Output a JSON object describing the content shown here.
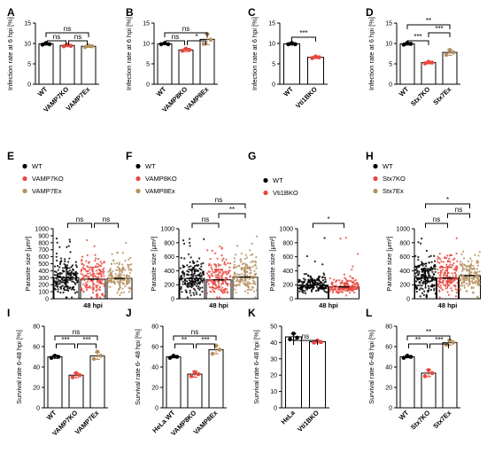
{
  "colors": {
    "wt": "#000000",
    "ko": "#e8473e",
    "ex": "#b5905e"
  },
  "chart_data": [
    {
      "panel": "A",
      "type": "bar",
      "ylabel": "Infection rate at 6 hpi [%]",
      "ylim": [
        0,
        15
      ],
      "yticks": [
        "0",
        "5",
        "10",
        "15"
      ],
      "categories": [
        "WT",
        "VAMP7KO",
        "VAMP7Ex"
      ],
      "values": [
        9.9,
        9.5,
        9.3
      ],
      "err": [
        0.3,
        0.3,
        0.3
      ],
      "points": [
        [
          9.7,
          10.1,
          9.8
        ],
        [
          9.3,
          9.7,
          9.4
        ],
        [
          9.1,
          9.5,
          9.3
        ]
      ],
      "sig": [
        {
          "a": 0,
          "b": 1,
          "label": "ns",
          "lvl": 0
        },
        {
          "a": 1,
          "b": 2,
          "label": "ns",
          "lvl": 0
        },
        {
          "a": 0,
          "b": 2,
          "label": "ns",
          "lvl": 1
        }
      ]
    },
    {
      "panel": "B",
      "type": "bar",
      "ylabel": "Infection rate at 6 hpi [%]",
      "ylim": [
        0,
        15
      ],
      "yticks": [
        "0",
        "5",
        "10",
        "15"
      ],
      "categories": [
        "WT",
        "VAMP8KO",
        "VAMP8Ex"
      ],
      "values": [
        9.9,
        8.4,
        11.0
      ],
      "err": [
        0.2,
        0.4,
        1.3
      ],
      "points": [
        [
          9.8,
          10.1,
          9.8
        ],
        [
          8.2,
          8.7,
          8.4
        ],
        [
          9.9,
          12.3,
          10.9
        ]
      ],
      "sig": [
        {
          "a": 0,
          "b": 1,
          "label": "ns",
          "lvl": 0
        },
        {
          "a": 1,
          "b": 2,
          "label": "*",
          "lvl": 0
        },
        {
          "a": 0,
          "b": 2,
          "label": "ns",
          "lvl": 1
        }
      ]
    },
    {
      "panel": "C",
      "type": "bar",
      "ylabel": "Infection rate at 6 hpi [%]",
      "ylim": [
        0,
        15
      ],
      "yticks": [
        "0",
        "5",
        "10",
        "15"
      ],
      "categories": [
        "WT",
        "Vti1BKO"
      ],
      "values": [
        9.9,
        6.6
      ],
      "err": [
        0.3,
        0.3
      ],
      "points": [
        [
          9.8,
          10.1,
          9.8
        ],
        [
          6.4,
          6.8,
          6.6
        ]
      ],
      "sig": [
        {
          "a": 0,
          "b": 1,
          "label": "***",
          "lvl": 0
        }
      ]
    },
    {
      "panel": "D",
      "type": "bar",
      "ylabel": "Infection rate at 6 hpi [%]",
      "ylim": [
        0,
        15
      ],
      "yticks": [
        "0",
        "5",
        "10",
        "15"
      ],
      "categories": [
        "WT",
        "Stx7KO",
        "Stx7Ex"
      ],
      "values": [
        9.9,
        5.3,
        7.8
      ],
      "err": [
        0.3,
        0.3,
        0.7
      ],
      "points": [
        [
          9.7,
          10.1,
          9.9
        ],
        [
          5.1,
          5.5,
          5.3
        ],
        [
          7.2,
          8.4,
          7.8
        ]
      ],
      "sig": [
        {
          "a": 0,
          "b": 1,
          "label": "***",
          "lvl": 0
        },
        {
          "a": 1,
          "b": 2,
          "label": "***",
          "lvl": 1
        },
        {
          "a": 0,
          "b": 2,
          "label": "**",
          "lvl": 2
        }
      ]
    },
    {
      "panel": "E",
      "type": "scatter-bar",
      "ylabel": "Parasite size [μm²]",
      "ylim": [
        0,
        1000
      ],
      "yticks": [
        "0",
        "100",
        "200",
        "300",
        "400",
        "500",
        "600",
        "700",
        "800",
        "900",
        "1000"
      ],
      "xlabel": "48 hpi",
      "legend": [
        "WT",
        "VAMP7KO",
        "VAMP7Ex"
      ],
      "series": [
        "wt",
        "ko",
        "ex"
      ],
      "values": [
        300,
        280,
        290
      ],
      "err": [
        140,
        170,
        120
      ],
      "sig": [
        {
          "a": 0,
          "b": 1,
          "label": "ns",
          "lvl": 0
        },
        {
          "a": 1,
          "b": 2,
          "label": "ns",
          "lvl": 0
        }
      ]
    },
    {
      "panel": "F",
      "type": "scatter-bar",
      "ylabel": "Parasite size [μm²]",
      "ylim": [
        0,
        1000
      ],
      "yticks": [
        "0",
        "200",
        "400",
        "600",
        "800",
        "1000"
      ],
      "xlabel": "48 hpi",
      "legend": [
        "WT",
        "VAMP8KO",
        "VAMP8Ex"
      ],
      "series": [
        "wt",
        "ko",
        "ex"
      ],
      "values": [
        290,
        270,
        310
      ],
      "err": [
        130,
        150,
        130
      ],
      "sig": [
        {
          "a": 0,
          "b": 1,
          "label": "ns",
          "lvl": 0
        },
        {
          "a": 1,
          "b": 2,
          "label": "**",
          "lvl": 1
        },
        {
          "a": 0,
          "b": 2,
          "label": "ns",
          "lvl": 2
        }
      ]
    },
    {
      "panel": "G",
      "type": "scatter-bar",
      "ylabel": "Parasite size [μm²]",
      "ylim": [
        0,
        1000
      ],
      "yticks": [
        "0",
        "200",
        "400",
        "600",
        "800",
        "1000"
      ],
      "xlabel": "48 hpi",
      "legend": [
        "WT",
        "Vti1BKO"
      ],
      "series": [
        "wt",
        "ko"
      ],
      "values": [
        195,
        170
      ],
      "err": [
        70,
        55
      ],
      "sig": [
        {
          "a": 0,
          "b": 1,
          "label": "*",
          "lvl": 0
        }
      ]
    },
    {
      "panel": "H",
      "type": "scatter-bar",
      "ylabel": "Parasite size [μm²]",
      "ylim": [
        0,
        1000
      ],
      "yticks": [
        "0",
        "200",
        "400",
        "600",
        "800",
        "1000"
      ],
      "xlabel": "48 hpi",
      "legend": [
        "WT",
        "Stx7KO",
        "Stx7Ex"
      ],
      "series": [
        "wt",
        "ko",
        "ex"
      ],
      "values": [
        300,
        295,
        330
      ],
      "err": [
        130,
        150,
        140
      ],
      "sig": [
        {
          "a": 0,
          "b": 1,
          "label": "ns",
          "lvl": 0
        },
        {
          "a": 1,
          "b": 2,
          "label": "ns",
          "lvl": 1
        },
        {
          "a": 0,
          "b": 2,
          "label": "*",
          "lvl": 2
        }
      ]
    },
    {
      "panel": "I",
      "type": "bar",
      "ylabel": "Survival rate 6-48 hpi [%]",
      "ylim": [
        0,
        80
      ],
      "yticks": [
        "0",
        "20",
        "40",
        "60",
        "80"
      ],
      "categories": [
        "WT",
        "VAMP7KO",
        "VAMP7Ex"
      ],
      "values": [
        50,
        32,
        51
      ],
      "err": [
        1.5,
        2.5,
        3.5
      ],
      "points": [
        [
          49,
          51,
          50
        ],
        [
          30,
          34,
          32
        ],
        [
          48,
          55,
          51
        ]
      ],
      "sig": [
        {
          "a": 0,
          "b": 1,
          "label": "***",
          "lvl": 0
        },
        {
          "a": 1,
          "b": 2,
          "label": "***",
          "lvl": 0
        },
        {
          "a": 0,
          "b": 2,
          "label": "ns",
          "lvl": 1
        }
      ]
    },
    {
      "panel": "J",
      "type": "bar",
      "ylabel": "Survival rate 6- 48 hpi [%]",
      "ylim": [
        0,
        80
      ],
      "yticks": [
        "0",
        "20",
        "40",
        "60",
        "80"
      ],
      "categories": [
        "HeLa WT",
        "VAMP8KO",
        "VAMP8Ex"
      ],
      "values": [
        50,
        33,
        57
      ],
      "err": [
        1,
        3,
        4
      ],
      "points": [
        [
          49,
          51,
          50
        ],
        [
          31,
          35,
          33
        ],
        [
          53,
          61,
          57
        ]
      ],
      "sig": [
        {
          "a": 0,
          "b": 1,
          "label": "**",
          "lvl": 0
        },
        {
          "a": 1,
          "b": 2,
          "label": "***",
          "lvl": 0
        },
        {
          "a": 0,
          "b": 2,
          "label": "ns",
          "lvl": 1
        }
      ]
    },
    {
      "panel": "K",
      "type": "bar",
      "ylabel": "Survival rate 6-48 hpi [%]",
      "ylim": [
        0,
        50
      ],
      "yticks": [
        "0",
        "10",
        "20",
        "30",
        "40",
        "50"
      ],
      "categories": [
        "HeLa",
        "Vti1BKO"
      ],
      "values": [
        43.5,
        40.5
      ],
      "err": [
        2,
        0.8
      ],
      "points": [
        [
          42,
          45.5,
          43
        ],
        [
          40,
          41.2,
          40.3
        ]
      ],
      "sig": [
        {
          "a": 0,
          "b": 1,
          "label": "ns",
          "lvl": 0
        }
      ]
    },
    {
      "panel": "L",
      "type": "bar",
      "ylabel": "Survival rate 6-48 hpi [%]",
      "ylim": [
        0,
        80
      ],
      "yticks": [
        "0",
        "20",
        "40",
        "60",
        "80"
      ],
      "categories": [
        "WT",
        "Stx7KO",
        "Stx7Ex"
      ],
      "values": [
        50,
        34,
        64
      ],
      "err": [
        1,
        3.5,
        2.5
      ],
      "points": [
        [
          49,
          51,
          50
        ],
        [
          31,
          37,
          34
        ],
        [
          62,
          66,
          64
        ]
      ],
      "sig": [
        {
          "a": 0,
          "b": 1,
          "label": "**",
          "lvl": 0
        },
        {
          "a": 1,
          "b": 2,
          "label": "***",
          "lvl": 0
        },
        {
          "a": 0,
          "b": 2,
          "label": "**",
          "lvl": 1
        }
      ]
    }
  ]
}
